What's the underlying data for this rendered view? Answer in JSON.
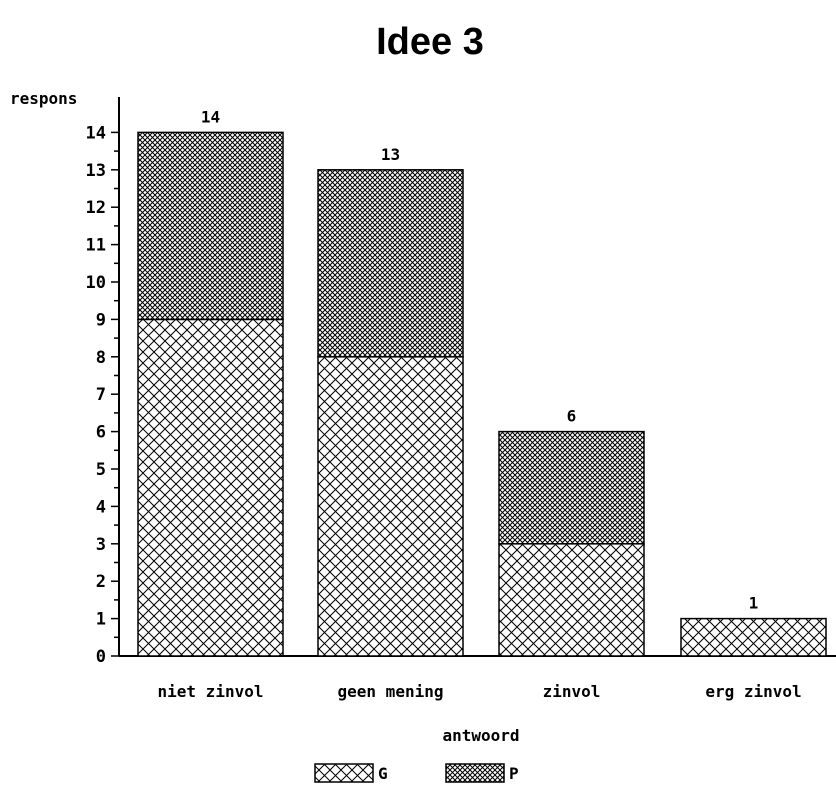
{
  "chart_data": {
    "type": "bar",
    "stacked": true,
    "title": "Idee 3",
    "xlabel": "antwoord",
    "ylabel": "respons",
    "ylim": [
      0,
      14
    ],
    "yticks": [
      0,
      1,
      2,
      3,
      4,
      5,
      6,
      7,
      8,
      9,
      10,
      11,
      12,
      13,
      14
    ],
    "categories": [
      "niet zinvol",
      "geen mening",
      "zinvol",
      "erg zinvol"
    ],
    "series": [
      {
        "name": "G",
        "values": [
          9,
          8,
          3,
          1
        ]
      },
      {
        "name": "P",
        "values": [
          5,
          5,
          3,
          0
        ]
      }
    ],
    "totals": [
      "14",
      "13",
      "6",
      "1"
    ],
    "legend_position": "bottom-center",
    "grid": false
  }
}
